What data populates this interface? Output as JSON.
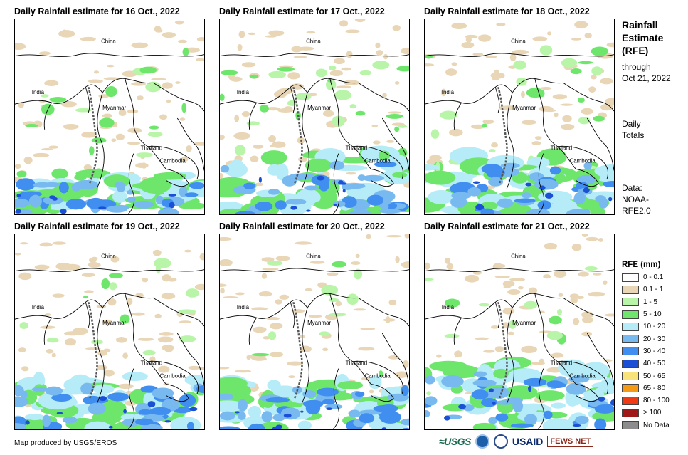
{
  "panels": [
    {
      "title": "Daily Rainfall estimate for 16 Oct., 2022",
      "day": 16
    },
    {
      "title": "Daily Rainfall estimate for 17 Oct., 2022",
      "day": 17
    },
    {
      "title": "Daily Rainfall estimate for 18 Oct., 2022",
      "day": 18
    },
    {
      "title": "Daily Rainfall estimate for 19 Oct., 2022",
      "day": 19
    },
    {
      "title": "Daily Rainfall estimate for 20 Oct., 2022",
      "day": 20
    },
    {
      "title": "Daily Rainfall estimate for 21 Oct., 2022",
      "day": 21
    }
  ],
  "map_labels": {
    "china": "China",
    "india": "India",
    "myanmar": "Myanmar",
    "thailand": "Thailand",
    "cambodia": "Cambodia"
  },
  "sidebar": {
    "title_line1": "Rainfall",
    "title_line2": "Estimate",
    "title_line3": "(RFE)",
    "through": "through",
    "through_date": "Oct 21, 2022",
    "totals_line1": "Daily",
    "totals_line2": "Totals",
    "data_line1": "Data:",
    "data_line2": "NOAA-",
    "data_line3": "RFE2.0"
  },
  "legend": {
    "title": "RFE (mm)",
    "items": [
      {
        "label": "0 - 0.1",
        "color": "#ffffff"
      },
      {
        "label": "0.1 - 1",
        "color": "#e8d6b6"
      },
      {
        "label": "1 - 5",
        "color": "#b9f5a8"
      },
      {
        "label": "5 - 10",
        "color": "#6ee66b"
      },
      {
        "label": "10 - 20",
        "color": "#b6ecf8"
      },
      {
        "label": "20 - 30",
        "color": "#78b9f0"
      },
      {
        "label": "30 - 40",
        "color": "#3f8ef0"
      },
      {
        "label": "40 - 50",
        "color": "#1a4fd6"
      },
      {
        "label": "50 - 65",
        "color": "#f8e27a"
      },
      {
        "label": "65 - 80",
        "color": "#f59a14"
      },
      {
        "label": "80 - 100",
        "color": "#f03a14"
      },
      {
        "label": "> 100",
        "color": "#a01818"
      },
      {
        "label": "No Data",
        "color": "#8c8c8c"
      }
    ]
  },
  "footer": {
    "credit": "Map produced by USGS/EROS",
    "logo_usgs": "≈USGS",
    "logo_usaid": "USAID",
    "logo_fews": "FEWS NET"
  }
}
